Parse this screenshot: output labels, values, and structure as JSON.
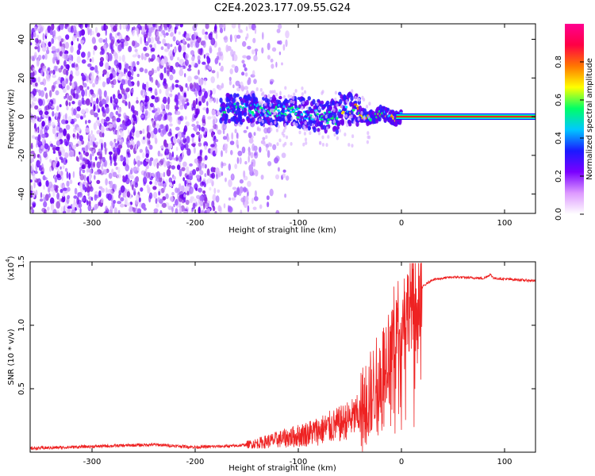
{
  "title": "C2E4.2023.177.09.55.G24",
  "chart_data": [
    {
      "type": "heatmap",
      "name": "spectrogram",
      "xlabel": "Height of straight line (km)",
      "ylabel": "Frequency (Hz)",
      "xlim": [
        -360,
        130
      ],
      "ylim": [
        -50,
        48
      ],
      "xticks": [
        -300,
        -200,
        -100,
        0,
        100
      ],
      "yticks": [
        -40,
        -20,
        0,
        20,
        40
      ],
      "colorbar": {
        "label": "Normalized spectral amplitude",
        "range": [
          0,
          1
        ],
        "ticks": [
          0.0,
          0.2,
          0.4,
          0.6,
          0.8
        ],
        "colors": [
          "#ffffff",
          "#dd99ff",
          "#7a00ff",
          "#1a1aff",
          "#00c8ff",
          "#00ff66",
          "#ffff00",
          "#ff7700",
          "#ff0044",
          "#ff0090"
        ]
      },
      "features": {
        "noise_region_x": [
          -360,
          -140
        ],
        "noise_frequency_range": [
          -50,
          48
        ],
        "signal_band_x": [
          -175,
          130
        ],
        "signal_band_frequency": 0,
        "strong_line_from_x": 0,
        "strong_line_color": "#ff2020"
      }
    },
    {
      "type": "line",
      "name": "snr",
      "xlabel": "Height of straight line (km)",
      "ylabel": "SNR (10 * v/v)",
      "y_multiplier_label": "(x10",
      "y_multiplier_exp": "4",
      "xlim": [
        -360,
        130
      ],
      "ylim": [
        0,
        1.5
      ],
      "xticks": [
        -300,
        -200,
        -100,
        0,
        100
      ],
      "yticks": [
        0.5,
        1.0,
        1.5
      ],
      "color": "#ee2222",
      "series": [
        {
          "x": [
            -360,
            -320,
            -280,
            -240,
            -200,
            -160,
            -140,
            -120,
            -100,
            -80,
            -60,
            -40,
            -30,
            -20,
            -10,
            0,
            10,
            20,
            30,
            50,
            80,
            86,
            90,
            110,
            130
          ],
          "y": [
            0.03,
            0.04,
            0.05,
            0.06,
            0.04,
            0.05,
            0.07,
            0.1,
            0.13,
            0.17,
            0.22,
            0.3,
            0.45,
            0.62,
            0.9,
            1.08,
            1.18,
            1.3,
            1.36,
            1.38,
            1.37,
            1.4,
            1.37,
            1.36,
            1.35
          ]
        }
      ]
    }
  ]
}
